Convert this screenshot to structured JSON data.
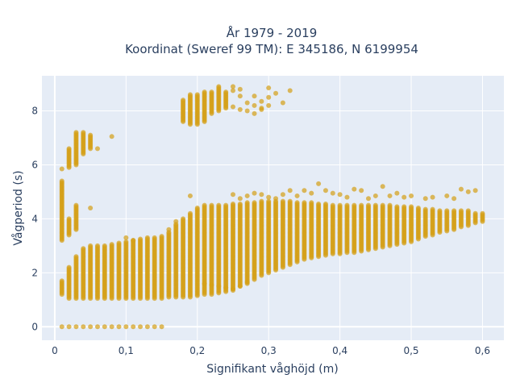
{
  "chart_data": {
    "type": "scatter",
    "title_lines": [
      "År 1979 - 2019",
      "Koordinat (Sweref 99 TM): E 345186, N 6199954"
    ],
    "xlabel": "Signifikant våghöjd (m)",
    "ylabel": "Vågperiod (s)",
    "xlim": [
      -0.018,
      0.63
    ],
    "ylim": [
      -0.5,
      9.3
    ],
    "x_ticks": [
      0,
      0.1,
      0.2,
      0.3,
      0.4,
      0.5,
      0.6
    ],
    "x_tick_labels": [
      "0",
      "0,1",
      "0,2",
      "0,3",
      "0,4",
      "0,5",
      "0,6"
    ],
    "y_ticks": [
      0,
      2,
      4,
      6,
      8
    ],
    "y_tick_labels": [
      "0",
      "2",
      "4",
      "6",
      "8"
    ],
    "marker_color": "#d4a017",
    "marker_opacity": 0.7,
    "background_color": "#e5ecf6",
    "grid": true,
    "x_step": 0.01,
    "series": [
      {
        "kind": "columns",
        "x_start": 0.01,
        "x_end": 0.6,
        "y_step": 0.05,
        "note": "dense vertical bands of points, y from min to max at each x",
        "columns": [
          [
            0.01,
            1.2,
            1.7
          ],
          [
            0.01,
            3.2,
            5.4
          ],
          [
            0.02,
            1.05,
            2.2
          ],
          [
            0.02,
            3.4,
            4.0
          ],
          [
            0.02,
            5.9,
            6.6
          ],
          [
            0.03,
            1.05,
            2.6
          ],
          [
            0.03,
            3.6,
            4.5
          ],
          [
            0.03,
            6.0,
            7.2
          ],
          [
            0.04,
            1.05,
            2.9
          ],
          [
            0.04,
            6.4,
            7.2
          ],
          [
            0.05,
            1.05,
            3.0
          ],
          [
            0.05,
            6.6,
            7.1
          ],
          [
            0.06,
            1.05,
            3.0
          ],
          [
            0.07,
            1.05,
            3.0
          ],
          [
            0.08,
            1.05,
            3.05
          ],
          [
            0.09,
            1.05,
            3.1
          ],
          [
            0.1,
            1.05,
            3.15
          ],
          [
            0.11,
            1.05,
            3.2
          ],
          [
            0.12,
            1.05,
            3.25
          ],
          [
            0.13,
            1.05,
            3.3
          ],
          [
            0.14,
            1.05,
            3.3
          ],
          [
            0.15,
            1.05,
            3.35
          ],
          [
            0.16,
            1.1,
            3.5
          ],
          [
            0.17,
            1.1,
            3.8
          ],
          [
            0.18,
            1.1,
            4.0
          ],
          [
            0.18,
            7.6,
            8.4
          ],
          [
            0.19,
            1.1,
            4.2
          ],
          [
            0.19,
            7.5,
            8.6
          ],
          [
            0.2,
            1.15,
            4.4
          ],
          [
            0.2,
            7.5,
            8.6
          ],
          [
            0.21,
            1.2,
            4.5
          ],
          [
            0.21,
            7.6,
            8.7
          ],
          [
            0.22,
            1.2,
            4.5
          ],
          [
            0.22,
            7.9,
            8.7
          ],
          [
            0.23,
            1.25,
            4.5
          ],
          [
            0.23,
            8.0,
            8.9
          ],
          [
            0.24,
            1.3,
            4.5
          ],
          [
            0.24,
            8.1,
            8.7
          ],
          [
            0.25,
            1.35,
            4.55
          ],
          [
            0.26,
            1.5,
            4.55
          ],
          [
            0.27,
            1.6,
            4.6
          ],
          [
            0.28,
            1.75,
            4.6
          ],
          [
            0.29,
            1.9,
            4.65
          ],
          [
            0.3,
            2.0,
            4.65
          ],
          [
            0.31,
            2.1,
            4.65
          ],
          [
            0.32,
            2.2,
            4.65
          ],
          [
            0.33,
            2.3,
            4.65
          ],
          [
            0.34,
            2.4,
            4.6
          ],
          [
            0.35,
            2.5,
            4.6
          ],
          [
            0.36,
            2.55,
            4.6
          ],
          [
            0.37,
            2.6,
            4.55
          ],
          [
            0.38,
            2.65,
            4.55
          ],
          [
            0.39,
            2.7,
            4.5
          ],
          [
            0.4,
            2.7,
            4.5
          ],
          [
            0.41,
            2.75,
            4.5
          ],
          [
            0.42,
            2.75,
            4.5
          ],
          [
            0.43,
            2.8,
            4.5
          ],
          [
            0.44,
            2.85,
            4.5
          ],
          [
            0.45,
            2.9,
            4.5
          ],
          [
            0.46,
            2.95,
            4.5
          ],
          [
            0.47,
            3.0,
            4.5
          ],
          [
            0.48,
            3.05,
            4.45
          ],
          [
            0.49,
            3.1,
            4.45
          ],
          [
            0.5,
            3.15,
            4.45
          ],
          [
            0.51,
            3.25,
            4.4
          ],
          [
            0.52,
            3.35,
            4.35
          ],
          [
            0.53,
            3.4,
            4.35
          ],
          [
            0.54,
            3.5,
            4.3
          ],
          [
            0.55,
            3.55,
            4.3
          ],
          [
            0.56,
            3.6,
            4.3
          ],
          [
            0.57,
            3.7,
            4.3
          ],
          [
            0.58,
            3.75,
            4.3
          ],
          [
            0.59,
            3.85,
            4.2
          ],
          [
            0.6,
            3.9,
            4.2
          ]
        ]
      },
      {
        "kind": "points",
        "note": "sparse and isolated observations",
        "points": [
          [
            0.01,
            0
          ],
          [
            0.02,
            0
          ],
          [
            0.03,
            0
          ],
          [
            0.04,
            0
          ],
          [
            0.05,
            0
          ],
          [
            0.06,
            0
          ],
          [
            0.07,
            0
          ],
          [
            0.08,
            0
          ],
          [
            0.09,
            0
          ],
          [
            0.1,
            0
          ],
          [
            0.11,
            0
          ],
          [
            0.12,
            0
          ],
          [
            0.13,
            0
          ],
          [
            0.14,
            0
          ],
          [
            0.15,
            0
          ],
          [
            0.01,
            5.85
          ],
          [
            0.05,
            4.4
          ],
          [
            0.06,
            6.6
          ],
          [
            0.08,
            7.05
          ],
          [
            0.1,
            3.3
          ],
          [
            0.11,
            3.2
          ],
          [
            0.16,
            3.6
          ],
          [
            0.17,
            3.9
          ],
          [
            0.19,
            4.85
          ],
          [
            0.25,
            4.9
          ],
          [
            0.26,
            4.75
          ],
          [
            0.27,
            4.85
          ],
          [
            0.28,
            4.95
          ],
          [
            0.29,
            4.9
          ],
          [
            0.3,
            4.8
          ],
          [
            0.31,
            4.75
          ],
          [
            0.32,
            4.9
          ],
          [
            0.33,
            5.05
          ],
          [
            0.34,
            4.85
          ],
          [
            0.35,
            5.05
          ],
          [
            0.36,
            4.95
          ],
          [
            0.37,
            5.3
          ],
          [
            0.38,
            5.05
          ],
          [
            0.39,
            4.95
          ],
          [
            0.4,
            4.9
          ],
          [
            0.41,
            4.8
          ],
          [
            0.42,
            5.1
          ],
          [
            0.43,
            5.05
          ],
          [
            0.44,
            4.75
          ],
          [
            0.45,
            4.85
          ],
          [
            0.46,
            5.2
          ],
          [
            0.47,
            4.85
          ],
          [
            0.48,
            4.95
          ],
          [
            0.49,
            4.8
          ],
          [
            0.5,
            4.85
          ],
          [
            0.52,
            4.75
          ],
          [
            0.53,
            4.8
          ],
          [
            0.55,
            4.85
          ],
          [
            0.56,
            4.75
          ],
          [
            0.57,
            5.1
          ],
          [
            0.58,
            5.0
          ],
          [
            0.59,
            5.05
          ],
          [
            0.21,
            1.6
          ],
          [
            0.22,
            1.55
          ],
          [
            0.23,
            1.5
          ],
          [
            0.24,
            1.45
          ],
          [
            0.25,
            1.4
          ],
          [
            0.26,
            1.5
          ],
          [
            0.27,
            1.65
          ],
          [
            0.25,
            8.75
          ],
          [
            0.25,
            8.9
          ],
          [
            0.26,
            8.8
          ],
          [
            0.26,
            8.55
          ],
          [
            0.27,
            8.3
          ],
          [
            0.28,
            8.55
          ],
          [
            0.28,
            8.2
          ],
          [
            0.29,
            8.35
          ],
          [
            0.29,
            8.05
          ],
          [
            0.3,
            8.2
          ],
          [
            0.3,
            8.5
          ],
          [
            0.31,
            8.65
          ],
          [
            0.32,
            8.3
          ],
          [
            0.33,
            8.75
          ],
          [
            0.3,
            8.85
          ],
          [
            0.25,
            8.15
          ],
          [
            0.26,
            8.05
          ],
          [
            0.27,
            8.0
          ],
          [
            0.28,
            7.9
          ],
          [
            0.29,
            8.1
          ]
        ]
      }
    ]
  }
}
